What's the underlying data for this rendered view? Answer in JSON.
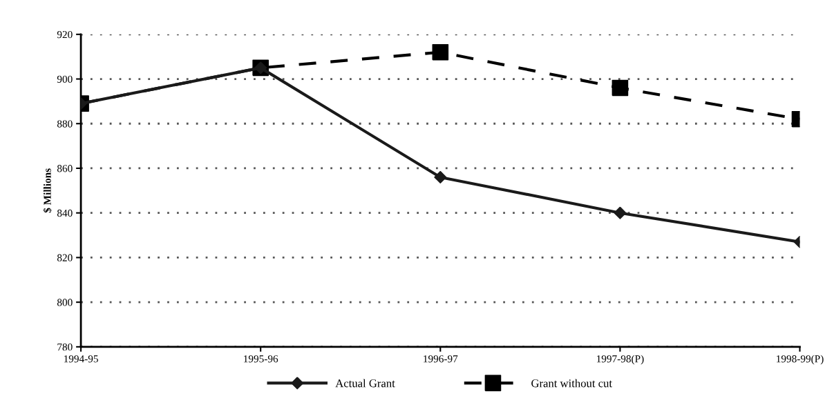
{
  "chart_data": {
    "type": "line",
    "ylabel": "$ Millions",
    "categories": [
      "1994-95",
      "1995-96",
      "1996-97",
      "1997-98(P)",
      "1998-99(P)"
    ],
    "series": [
      {
        "name": "Actual Grant",
        "color": "#1a1a1a",
        "marker": "diamond",
        "line_style": "solid",
        "values": [
          889,
          905,
          856,
          840,
          827
        ]
      },
      {
        "name": "Grant without cut",
        "color": "#000000",
        "marker": "square",
        "line_style": "dashed",
        "values": [
          889,
          905,
          912,
          896,
          882
        ]
      }
    ],
    "ylim": [
      780,
      920
    ],
    "yticks": [
      780,
      800,
      820,
      840,
      860,
      880,
      900,
      920
    ],
    "grid": "y",
    "legend": "bottom"
  }
}
